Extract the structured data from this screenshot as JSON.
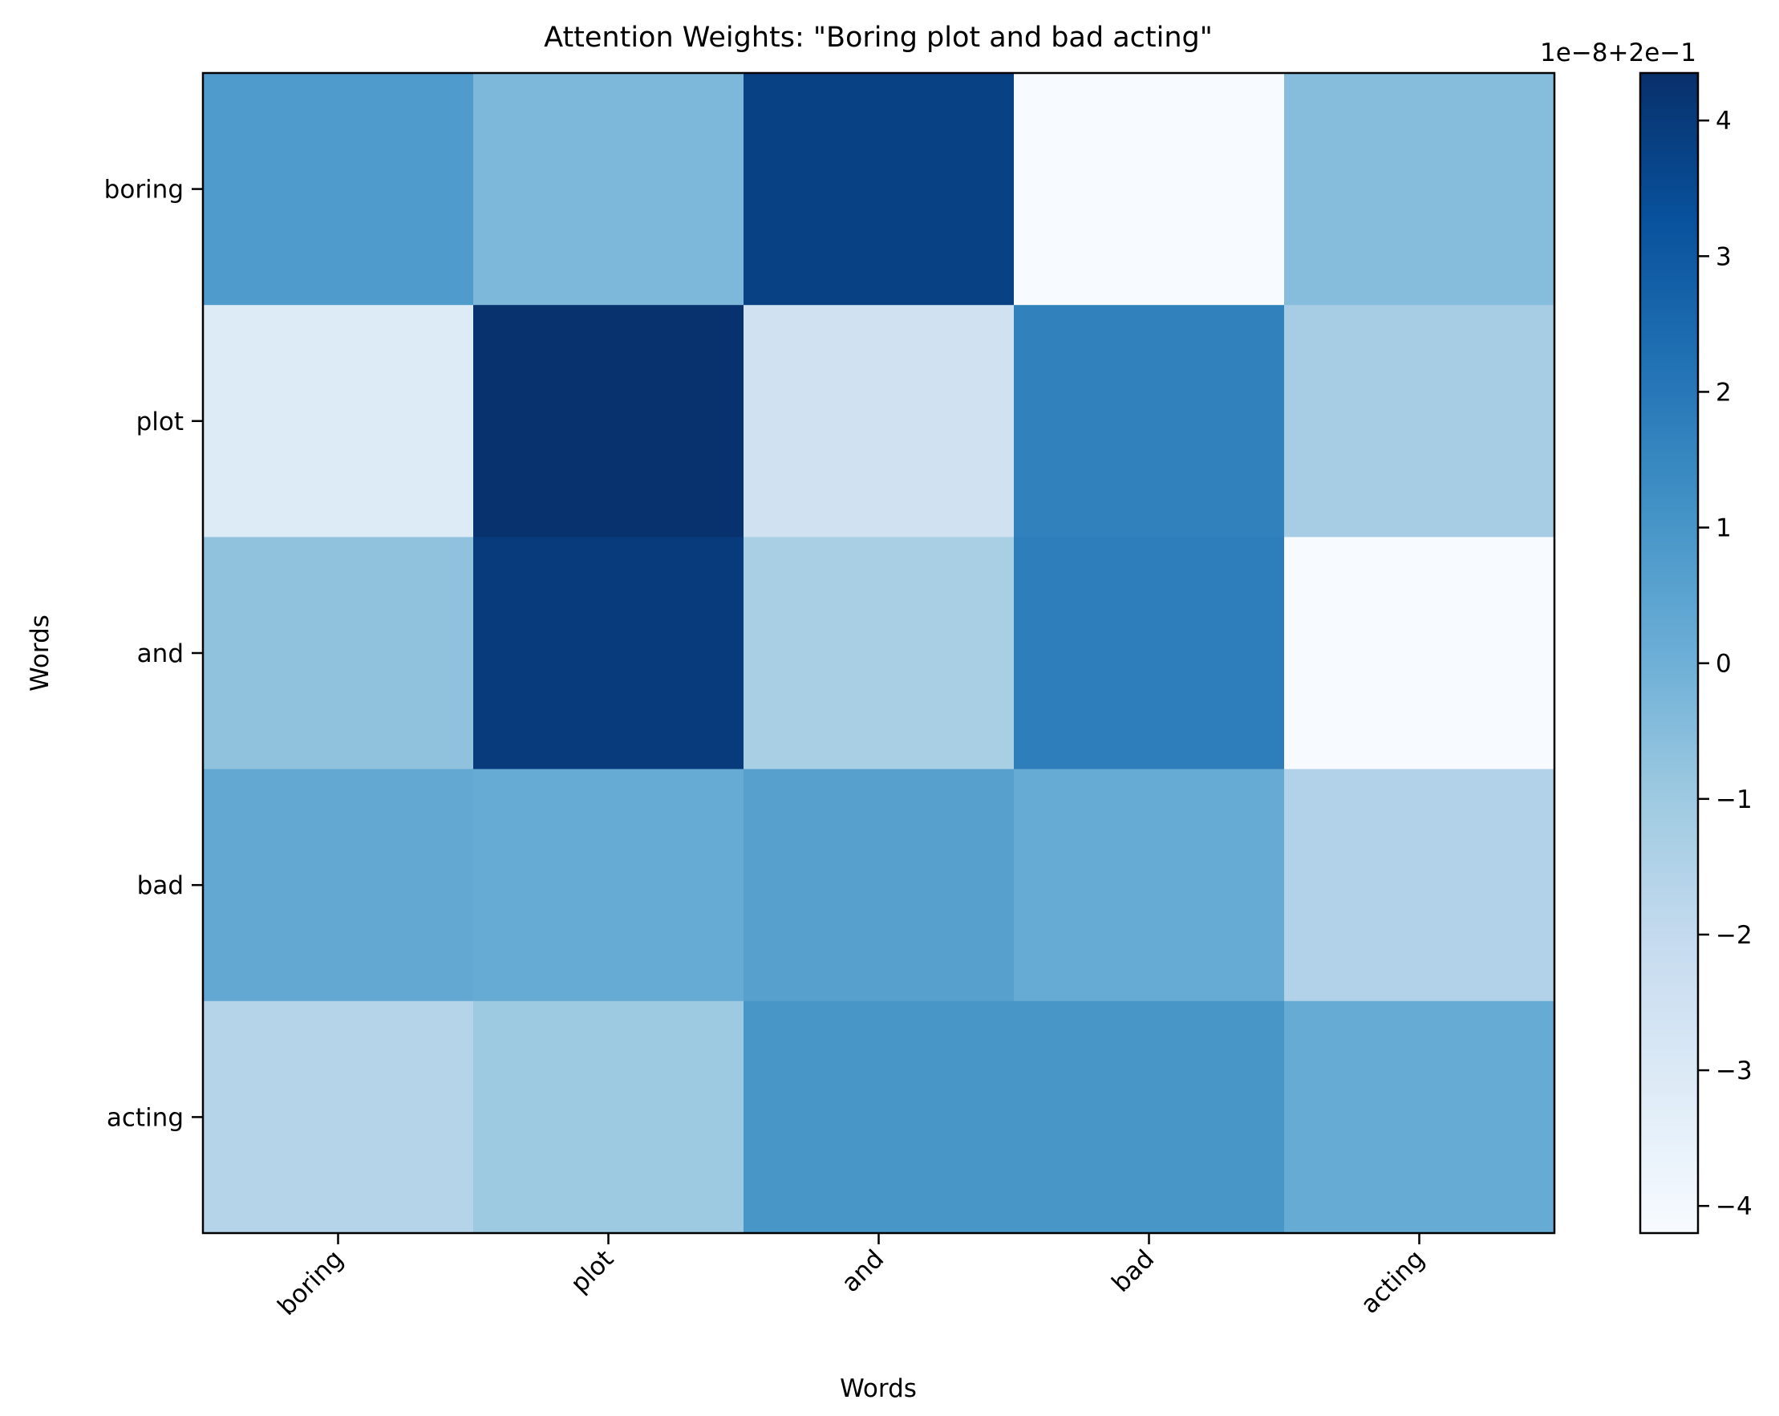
{
  "chart_data": {
    "type": "heatmap",
    "title": "Attention Weights: \"Boring plot and bad acting\"",
    "xlabel": "Words",
    "ylabel": "Words",
    "x_categories": [
      "boring",
      "plot",
      "and",
      "bad",
      "acting"
    ],
    "y_categories": [
      "boring",
      "plot",
      "and",
      "bad",
      "acting"
    ],
    "values": [
      [
        0.8,
        -0.3,
        3.8,
        -4.2,
        -0.5
      ],
      [
        -3.1,
        4.3,
        -2.5,
        1.7,
        -1.2
      ],
      [
        -0.7,
        4.0,
        -1.3,
        1.8,
        -4.2
      ],
      [
        0.3,
        0.2,
        0.6,
        0.2,
        -1.5
      ],
      [
        -1.6,
        -1.0,
        1.0,
        1.0,
        0.2
      ]
    ],
    "colormap": "Blues",
    "colorbar": {
      "min": -4.2,
      "max": 4.35,
      "ticks": [
        -4,
        -3,
        -2,
        -1,
        0,
        1,
        2,
        3,
        4
      ],
      "tick_labels": [
        "−4",
        "−3",
        "−2",
        "−1",
        "0",
        "1",
        "2",
        "3",
        "4"
      ],
      "offset_text": "1e−8+2e−1"
    },
    "grid": false
  }
}
